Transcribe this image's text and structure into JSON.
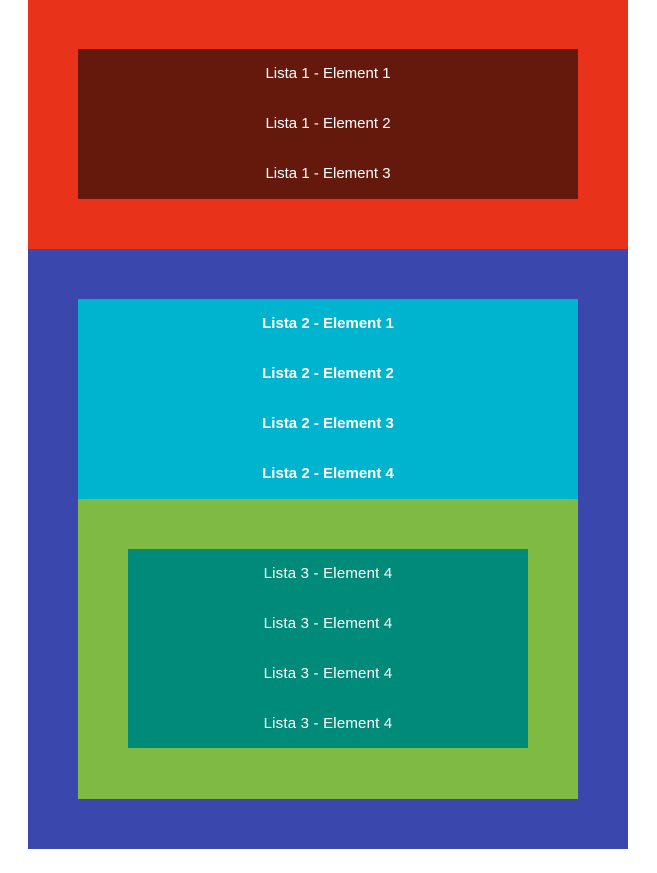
{
  "colors": {
    "outer_red": "#e8321a",
    "list1_bg": "#65190c",
    "outer_blue": "#3a48ae",
    "list2_bg": "#00b3cf",
    "green_block": "#7fba42",
    "list3_bg": "#008a7a",
    "text": "#ffffff"
  },
  "list1": {
    "items": [
      "Lista 1 - Element 1",
      "Lista 1 - Element 2",
      "Lista 1 - Element 3"
    ]
  },
  "list2": {
    "items": [
      "Lista 2 - Element 1",
      "Lista 2 - Element 2",
      "Lista 2 - Element 3",
      "Lista 2 - Element 4"
    ]
  },
  "list3": {
    "items": [
      "Lista 3 - Element 4",
      "Lista 3 - Element 4",
      "Lista 3 - Element 4",
      "Lista 3 - Element 4"
    ]
  }
}
